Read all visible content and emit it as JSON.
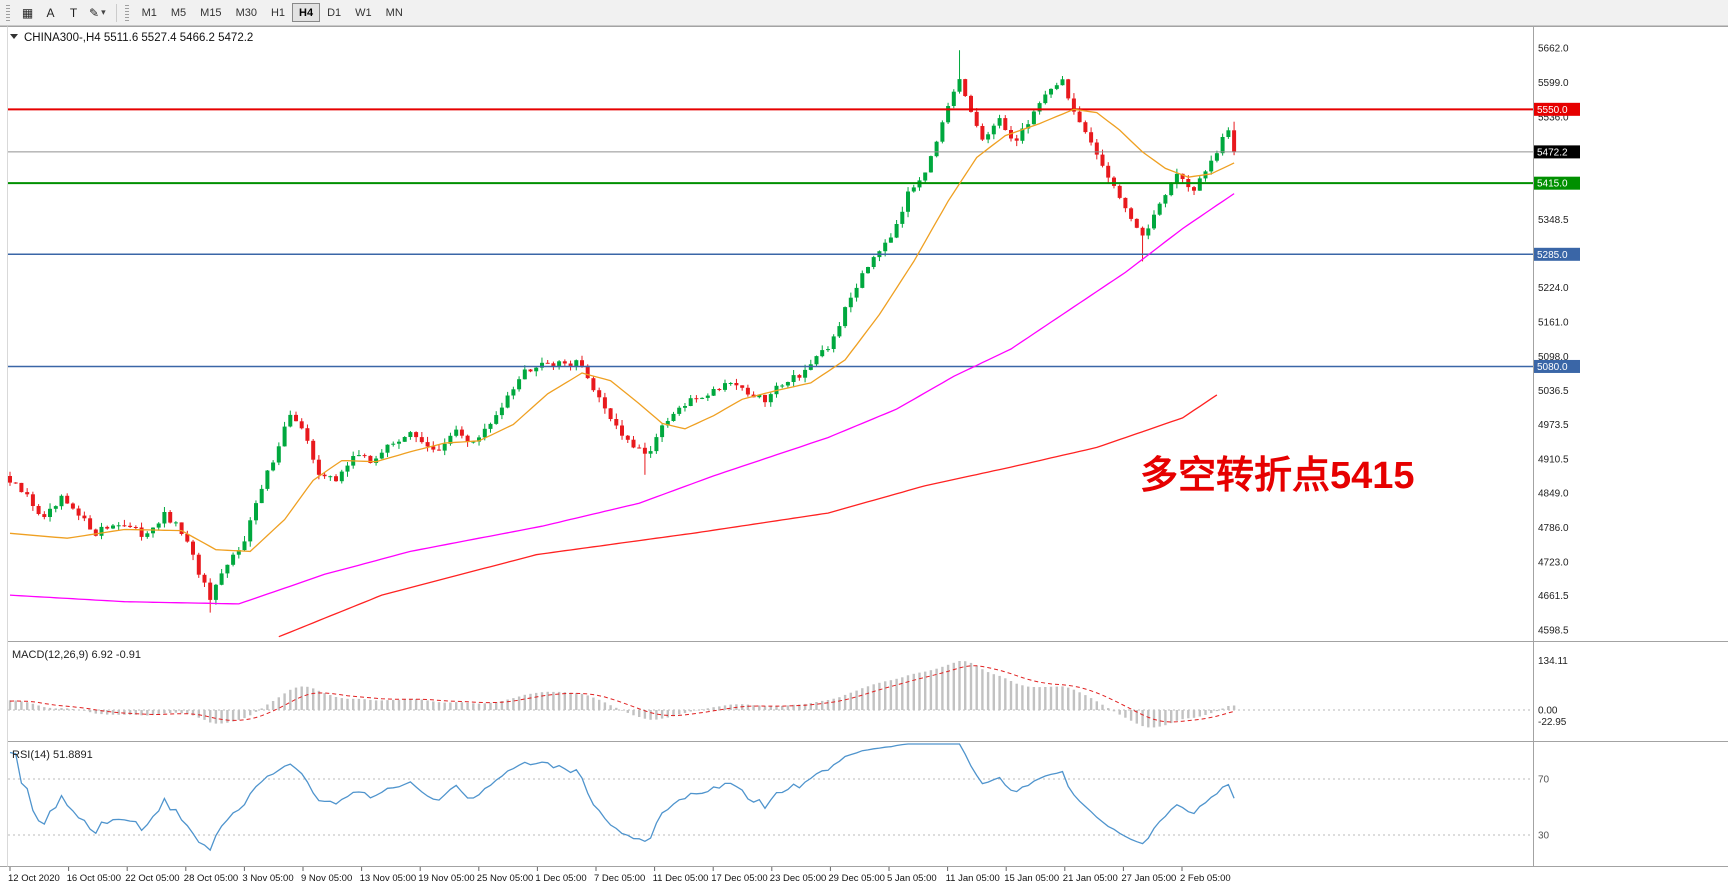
{
  "toolbar": {
    "tools": [
      {
        "name": "panel-grid-icon",
        "glyph": "▦"
      },
      {
        "name": "letter-a-icon",
        "glyph": "A"
      },
      {
        "name": "letter-t-icon",
        "glyph": "T"
      },
      {
        "name": "pencil-icon",
        "glyph": "✎"
      },
      {
        "name": "dropdown-caret-icon",
        "glyph": "▾"
      }
    ],
    "timeframes": [
      {
        "label": "M1",
        "active": false
      },
      {
        "label": "M5",
        "active": false
      },
      {
        "label": "M15",
        "active": false
      },
      {
        "label": "M30",
        "active": false
      },
      {
        "label": "H1",
        "active": false
      },
      {
        "label": "H4",
        "active": true
      },
      {
        "label": "D1",
        "active": false
      },
      {
        "label": "W1",
        "active": false
      },
      {
        "label": "MN",
        "active": false
      }
    ]
  },
  "chart_header": {
    "text": "CHINA300-,H4 5511.6 5527.4 5466.2 5472.2"
  },
  "annotation": {
    "text": "多空转折点5415",
    "color": "#e60000"
  },
  "price_axis": {
    "labels": [
      5662.0,
      5599.0,
      5536.0,
      5348.5,
      5224.0,
      5161.0,
      5098.0,
      5036.5,
      4973.5,
      4910.5,
      4849.0,
      4786.0,
      4723.0,
      4661.5,
      4598.5
    ],
    "badges": [
      {
        "text": "5550.0",
        "price": 5550.0,
        "color": "#e60000"
      },
      {
        "text": "5472.2",
        "price": 5472.2,
        "color": "#000000"
      },
      {
        "text": "5415.0",
        "price": 5415.0,
        "color": "#009000"
      },
      {
        "text": "5285.0",
        "price": 5285.0,
        "color": "#3a66a7"
      },
      {
        "text": "5080.0",
        "price": 5080.0,
        "color": "#3a66a7"
      }
    ]
  },
  "time_axis": {
    "labels": [
      "12 Oct 2020",
      "16 Oct 05:00",
      "22 Oct 05:00",
      "28 Oct 05:00",
      "3 Nov 05:00",
      "9 Nov 05:00",
      "13 Nov 05:00",
      "19 Nov 05:00",
      "25 Nov 05:00",
      "1 Dec 05:00",
      "7 Dec 05:00",
      "11 Dec 05:00",
      "17 Dec 05:00",
      "23 Dec 05:00",
      "29 Dec 05:00",
      "5 Jan 05:00",
      "11 Jan 05:00",
      "15 Jan 05:00",
      "21 Jan 05:00",
      "27 Jan 05:00",
      "2 Feb 05:00"
    ]
  },
  "macd_panel": {
    "label": "MACD(12,26,9) 6.92 -0.91",
    "axis_labels": [
      "134.11",
      "0.00",
      "-22.95"
    ],
    "histogram_color": "#c2c2c2",
    "signal_color": "#e02020"
  },
  "rsi_panel": {
    "label": "RSI(14) 51.8891",
    "level_labels": [
      "70",
      "30"
    ],
    "line_color": "#4f94cd",
    "value": 51.8891
  },
  "chart_data": {
    "type": "candlestick",
    "title": "CHINA300-,H4",
    "symbol": "CHINA300-",
    "timeframe": "H4",
    "x_range": [
      "12 Oct 2020",
      "2 Feb 2021"
    ],
    "price_range_visible": [
      4580,
      5695
    ],
    "n_candles": 215,
    "last_bar": {
      "open": 5511.6,
      "high": 5527.4,
      "low": 5466.2,
      "close": 5472.2
    },
    "current_price": 5472.2,
    "horizontal_lines": [
      {
        "price": 5550.0,
        "color": "#e60000",
        "width": 2
      },
      {
        "price": 5415.0,
        "color": "#009000",
        "width": 2
      },
      {
        "price": 5285.0,
        "color": "#3a66a7",
        "width": 1.5
      },
      {
        "price": 5080.0,
        "color": "#3a66a7",
        "width": 1.5
      }
    ],
    "up_color": "#00a83e",
    "down_color": "#e8191d",
    "close_anchors": [
      [
        0,
        4868
      ],
      [
        3,
        4842
      ],
      [
        6,
        4800
      ],
      [
        9,
        4836
      ],
      [
        12,
        4805
      ],
      [
        15,
        4778
      ],
      [
        19,
        4795
      ],
      [
        23,
        4772
      ],
      [
        27,
        4806
      ],
      [
        30,
        4778
      ],
      [
        33,
        4705
      ],
      [
        35,
        4652
      ],
      [
        38,
        4715
      ],
      [
        41,
        4768
      ],
      [
        44,
        4855
      ],
      [
        47,
        4940
      ],
      [
        49,
        4995
      ],
      [
        51,
        4962
      ],
      [
        54,
        4888
      ],
      [
        57,
        4868
      ],
      [
        60,
        4922
      ],
      [
        63,
        4905
      ],
      [
        66,
        4932
      ],
      [
        69,
        4956
      ],
      [
        72,
        4946
      ],
      [
        75,
        4922
      ],
      [
        78,
        4962
      ],
      [
        81,
        4940
      ],
      [
        84,
        4972
      ],
      [
        87,
        5032
      ],
      [
        90,
        5072
      ],
      [
        93,
        5092
      ],
      [
        96,
        5082
      ],
      [
        99,
        5092
      ],
      [
        102,
        5042
      ],
      [
        105,
        4988
      ],
      [
        108,
        4940
      ],
      [
        111,
        4916
      ],
      [
        114,
        4966
      ],
      [
        117,
        5002
      ],
      [
        120,
        5022
      ],
      [
        123,
        5036
      ],
      [
        126,
        5056
      ],
      [
        129,
        5032
      ],
      [
        132,
        5016
      ],
      [
        135,
        5052
      ],
      [
        138,
        5066
      ],
      [
        141,
        5092
      ],
      [
        143,
        5112
      ],
      [
        146,
        5182
      ],
      [
        149,
        5252
      ],
      [
        152,
        5298
      ],
      [
        154,
        5322
      ],
      [
        157,
        5392
      ],
      [
        160,
        5442
      ],
      [
        163,
        5522
      ],
      [
        166,
        5602
      ],
      [
        168,
        5542
      ],
      [
        170,
        5496
      ],
      [
        173,
        5526
      ],
      [
        176,
        5492
      ],
      [
        179,
        5546
      ],
      [
        182,
        5592
      ],
      [
        184,
        5602
      ],
      [
        186,
        5546
      ],
      [
        189,
        5482
      ],
      [
        192,
        5432
      ],
      [
        195,
        5372
      ],
      [
        198,
        5312
      ],
      [
        201,
        5382
      ],
      [
        204,
        5432
      ],
      [
        207,
        5402
      ],
      [
        210,
        5452
      ],
      [
        213,
        5512
      ],
      [
        214,
        5472
      ]
    ],
    "wick_overrides": [
      {
        "i": 35,
        "low": 4630
      },
      {
        "i": 111,
        "low": 4882
      },
      {
        "i": 166,
        "high": 5658
      },
      {
        "i": 198,
        "low": 5272
      }
    ],
    "moving_averages": [
      {
        "name": "ma-fast-line",
        "color": "#efa022",
        "anchors": [
          [
            0,
            4775
          ],
          [
            10,
            4766
          ],
          [
            20,
            4782
          ],
          [
            30,
            4780
          ],
          [
            36,
            4745
          ],
          [
            42,
            4742
          ],
          [
            48,
            4800
          ],
          [
            53,
            4872
          ],
          [
            58,
            4908
          ],
          [
            64,
            4906
          ],
          [
            70,
            4924
          ],
          [
            76,
            4940
          ],
          [
            82,
            4944
          ],
          [
            88,
            4974
          ],
          [
            94,
            5030
          ],
          [
            100,
            5068
          ],
          [
            105,
            5054
          ],
          [
            110,
            5012
          ],
          [
            114,
            4976
          ],
          [
            118,
            4966
          ],
          [
            123,
            4990
          ],
          [
            128,
            5020
          ],
          [
            134,
            5036
          ],
          [
            140,
            5050
          ],
          [
            146,
            5092
          ],
          [
            152,
            5175
          ],
          [
            158,
            5272
          ],
          [
            164,
            5382
          ],
          [
            169,
            5462
          ],
          [
            174,
            5502
          ],
          [
            180,
            5524
          ],
          [
            186,
            5550
          ],
          [
            190,
            5544
          ],
          [
            194,
            5512
          ],
          [
            198,
            5472
          ],
          [
            202,
            5442
          ],
          [
            206,
            5426
          ],
          [
            210,
            5432
          ],
          [
            214,
            5452
          ]
        ]
      },
      {
        "name": "ma-mid-line",
        "color": "#ff00ff",
        "anchors": [
          [
            0,
            4662
          ],
          [
            20,
            4650
          ],
          [
            40,
            4646
          ],
          [
            55,
            4700
          ],
          [
            70,
            4742
          ],
          [
            93,
            4788
          ],
          [
            110,
            4830
          ],
          [
            123,
            4880
          ],
          [
            143,
            4950
          ],
          [
            155,
            5002
          ],
          [
            165,
            5062
          ],
          [
            175,
            5112
          ],
          [
            185,
            5182
          ],
          [
            195,
            5252
          ],
          [
            205,
            5332
          ],
          [
            214,
            5396
          ]
        ]
      },
      {
        "name": "ma-slow-line",
        "color": "#ff2222",
        "anchors": [
          [
            47,
            4586
          ],
          [
            65,
            4662
          ],
          [
            92,
            4736
          ],
          [
            120,
            4776
          ],
          [
            143,
            4812
          ],
          [
            160,
            4862
          ],
          [
            175,
            4896
          ],
          [
            190,
            4932
          ],
          [
            205,
            4986
          ],
          [
            211,
            5028
          ]
        ]
      }
    ],
    "indicators": {
      "macd": {
        "fast": 12,
        "slow": 26,
        "signal": 9,
        "value": 6.92,
        "signal_value": -0.91
      },
      "rsi": {
        "period": 14,
        "value": 51.8891,
        "levels": [
          70,
          30
        ]
      }
    }
  }
}
